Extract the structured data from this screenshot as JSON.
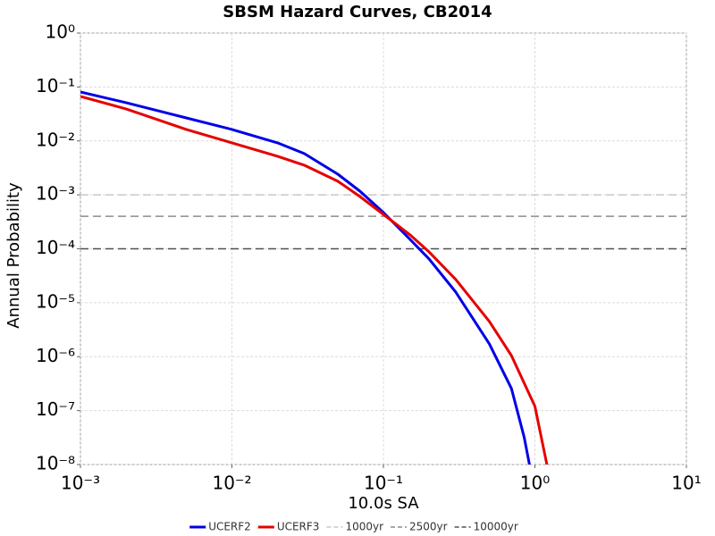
{
  "chart_data": {
    "type": "line",
    "title": "SBSM Hazard Curves, CB2014",
    "x_label": "10.0s SA",
    "y_label": "Annual Probability",
    "xscale": "log",
    "yscale": "log",
    "grid": true,
    "xlim": [
      0.001,
      10
    ],
    "xticks": [
      {
        "value": 0.001,
        "label": "10⁻³"
      },
      {
        "value": 0.01,
        "label": "10⁻²"
      },
      {
        "value": 0.1,
        "label": "10⁻¹"
      },
      {
        "value": 1,
        "label": "10⁰"
      },
      {
        "value": 10,
        "label": "10¹"
      }
    ],
    "ylim": [
      1e-08,
      1
    ],
    "yticks": [
      {
        "value": 1,
        "label": "10⁰"
      },
      {
        "value": 0.1,
        "label": "10⁻¹"
      },
      {
        "value": 0.01,
        "label": "10⁻²"
      },
      {
        "value": 0.001,
        "label": "10⁻³"
      },
      {
        "value": 0.0001,
        "label": "10⁻⁴"
      },
      {
        "value": 1e-05,
        "label": "10⁻⁵"
      },
      {
        "value": 1e-06,
        "label": "10⁻⁶"
      },
      {
        "value": 1e-07,
        "label": "10⁻⁷"
      },
      {
        "value": 1e-08,
        "label": "10⁻⁸"
      }
    ],
    "series": [
      {
        "name": "UCERF2",
        "color": "#0000e6",
        "x": [
          0.001,
          0.002,
          0.005,
          0.01,
          0.02,
          0.03,
          0.05,
          0.07,
          0.1,
          0.15,
          0.2,
          0.3,
          0.5,
          0.7,
          0.85,
          0.92
        ],
        "values": [
          0.0807,
          0.0512,
          0.0267,
          0.0163,
          0.0092,
          0.00582,
          0.00242,
          0.00117,
          0.00047,
          0.00015,
          6.5e-05,
          1.58e-05,
          1.73e-06,
          2.58e-07,
          3.2e-08,
          1e-08
        ]
      },
      {
        "name": "UCERF3",
        "color": "#e60000",
        "x": [
          0.001,
          0.002,
          0.005,
          0.01,
          0.02,
          0.03,
          0.05,
          0.07,
          0.1,
          0.15,
          0.2,
          0.3,
          0.5,
          0.7,
          1.0,
          1.2
        ],
        "values": [
          0.0668,
          0.0392,
          0.0163,
          0.0092,
          0.00519,
          0.00355,
          0.00179,
          0.00093,
          0.000435,
          0.000181,
          8.8e-05,
          2.7e-05,
          4.5e-06,
          1.05e-06,
          1.2e-07,
          1e-08
        ]
      }
    ],
    "reference_lines": [
      {
        "name": "1000yr",
        "value": 0.001,
        "color": "#c8c8c8"
      },
      {
        "name": "2500yr",
        "value": 0.0004,
        "color": "#8c8c8c"
      },
      {
        "name": "10000yr",
        "value": 0.0001,
        "color": "#505050"
      }
    ],
    "legend": "bottom"
  }
}
